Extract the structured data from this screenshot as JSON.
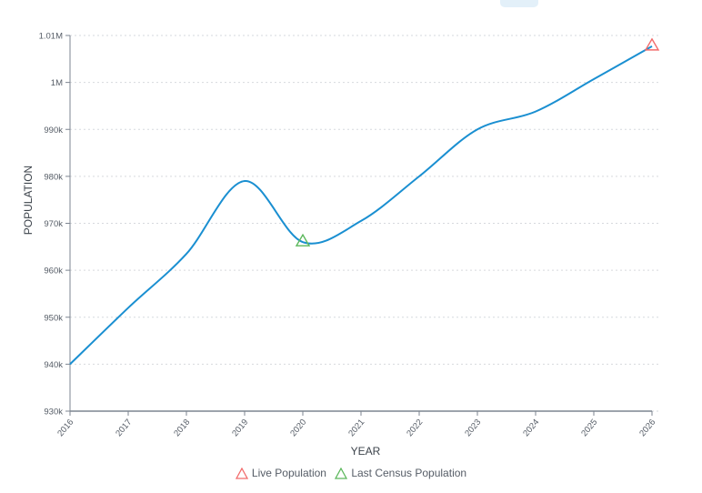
{
  "chart_data": {
    "type": "line",
    "title": "",
    "xlabel": "YEAR",
    "ylabel": "POPULATION",
    "x": [
      2016,
      2017,
      2018,
      2019,
      2020,
      2021,
      2022,
      2023,
      2024,
      2025,
      2026
    ],
    "x_tick_labels": [
      "2016",
      "2017",
      "2018",
      "2019",
      "2020",
      "2021",
      "2022",
      "2023",
      "2024",
      "2025",
      "2026"
    ],
    "y_tick_values": [
      930000,
      940000,
      950000,
      960000,
      970000,
      980000,
      990000,
      1000000,
      1010000
    ],
    "y_tick_labels": [
      "930k",
      "940k",
      "950k",
      "960k",
      "970k",
      "980k",
      "990k",
      "1M",
      "1.01M"
    ],
    "ylim": [
      930000,
      1010000
    ],
    "xlim": [
      2016,
      2026
    ],
    "grid": "horizontal dotted",
    "series": [
      {
        "values": [
          940000,
          952000,
          963500,
          979000,
          966000,
          970500,
          980000,
          990000,
          993800,
          1000700,
          1007700
        ],
        "color": "#1a8fd1",
        "smooth": true
      }
    ],
    "markers": [
      {
        "name": "Live Population",
        "x": 2026,
        "y": 1007700,
        "shape": "triangle",
        "color": "#f26b6b"
      },
      {
        "name": "Last Census Population",
        "x": 2020,
        "y": 966000,
        "shape": "triangle",
        "color": "#5cb85c"
      }
    ],
    "legend": {
      "placement": "bottom",
      "entries": [
        "Live Population",
        "Last Census Population"
      ]
    }
  }
}
